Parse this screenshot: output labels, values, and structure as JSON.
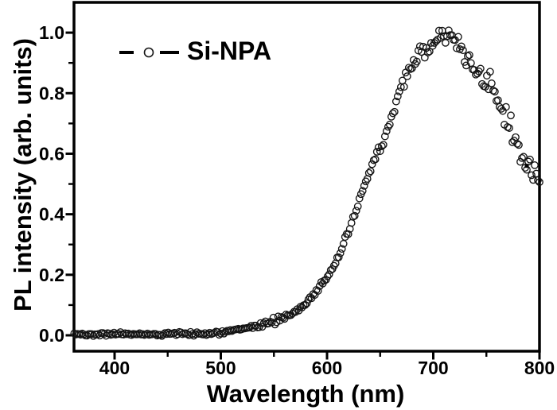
{
  "figure": {
    "type": "scientific-plot",
    "background_color": "#ffffff",
    "frame_color": "#000000",
    "marker_color": "#141414"
  },
  "legend": {
    "label": "Si-NPA",
    "symbol": "dash-open-circle-dash"
  },
  "axes": {
    "x": {
      "title": "Wavelength (nm)",
      "major_ticks": [
        400,
        500,
        600,
        700,
        800
      ],
      "major_tick_labels": [
        "400",
        "500",
        "600",
        "700",
        "800"
      ],
      "minor_ticks": [
        450,
        550,
        650,
        750
      ]
    },
    "y": {
      "title": "PL intensity (arb. units)",
      "major_ticks": [
        0.0,
        0.2,
        0.4,
        0.6,
        0.8,
        1.0
      ],
      "major_tick_labels": [
        "0.0",
        "0.2",
        "0.4",
        "0.6",
        "0.8",
        "1.0"
      ],
      "minor_ticks": [
        0.1,
        0.3,
        0.5,
        0.7,
        0.9
      ]
    }
  },
  "chart_data": {
    "type": "scatter",
    "title": "",
    "xlabel": "Wavelength (nm)",
    "ylabel": "PL intensity (arb. units)",
    "xlim": [
      361.8,
      800
    ],
    "ylim": [
      -0.0525,
      1.1
    ],
    "grid": false,
    "legend_position": "top-left-inside",
    "series": [
      {
        "name": "Si-NPA",
        "marker": "open-circle",
        "marker_radius_px": 4.2,
        "marker_color": "#141414",
        "peak_wavelength_nm": 710,
        "peak_intensity": 1.0,
        "point_step_nm": 1.5,
        "x": [
          362,
          365,
          370,
          375,
          380,
          385,
          390,
          395,
          400,
          405,
          410,
          415,
          420,
          425,
          430,
          435,
          440,
          445,
          450,
          455,
          460,
          465,
          470,
          475,
          480,
          485,
          490,
          495,
          500,
          505,
          510,
          515,
          520,
          525,
          530,
          535,
          540,
          545,
          550,
          555,
          560,
          565,
          570,
          575,
          580,
          585,
          590,
          595,
          600,
          605,
          610,
          615,
          620,
          625,
          630,
          635,
          640,
          645,
          650,
          655,
          660,
          665,
          670,
          675,
          680,
          685,
          690,
          695,
          700,
          705,
          710,
          715,
          720,
          725,
          730,
          735,
          740,
          745,
          750,
          755,
          760,
          765,
          770,
          775,
          780,
          785,
          790,
          795,
          800
        ],
        "y": [
          0.004,
          0.003,
          0.004,
          0.005,
          0.003,
          0.004,
          0.005,
          0.004,
          0.003,
          0.004,
          0.005,
          0.003,
          0.004,
          0.004,
          0.005,
          0.004,
          0.003,
          0.004,
          0.005,
          0.004,
          0.005,
          0.004,
          0.005,
          0.005,
          0.006,
          0.006,
          0.007,
          0.008,
          0.009,
          0.011,
          0.013,
          0.016,
          0.019,
          0.023,
          0.027,
          0.032,
          0.037,
          0.043,
          0.049,
          0.053,
          0.06,
          0.068,
          0.078,
          0.09,
          0.105,
          0.125,
          0.148,
          0.17,
          0.193,
          0.22,
          0.252,
          0.291,
          0.337,
          0.389,
          0.442,
          0.491,
          0.537,
          0.581,
          0.622,
          0.664,
          0.71,
          0.764,
          0.817,
          0.857,
          0.89,
          0.917,
          0.94,
          0.957,
          0.97,
          0.981,
          0.99,
          0.988,
          0.972,
          0.951,
          0.929,
          0.901,
          0.874,
          0.858,
          0.842,
          0.819,
          0.779,
          0.741,
          0.706,
          0.662,
          0.619,
          0.579,
          0.549,
          0.521,
          0.499
        ],
        "noise_sigma_by_band": [
          [
            545,
            0.0035
          ],
          [
            635,
            0.0055
          ],
          [
            680,
            0.01
          ],
          [
            740,
            0.016
          ],
          [
            785,
            0.02
          ],
          [
            801,
            0.026
          ]
        ]
      }
    ],
    "outlier_point": {
      "x": 788,
      "y": 0.56,
      "marker": "filled-square"
    }
  }
}
